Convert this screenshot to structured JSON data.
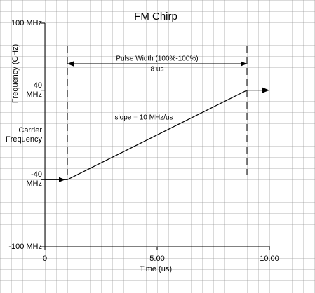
{
  "chart_data": {
    "type": "line",
    "title": "FM Chirp",
    "x_label": "Time (us)",
    "y_label": "Frequency (GHz)",
    "x": [
      0,
      1,
      9,
      10
    ],
    "series": [
      {
        "color": "#000000",
        "values": [
          -40,
          -40,
          40,
          40
        ]
      }
    ],
    "xlim": [
      0,
      10
    ],
    "xticks": [
      0,
      {
        "value": 5,
        "label": "5.00"
      },
      {
        "value": 10,
        "label": "10.00"
      }
    ],
    "ylim": [
      -100,
      100
    ],
    "yticks": [
      {
        "value": 100,
        "label": "100 MHz"
      },
      {
        "value": 40,
        "label": "40\nMHz"
      },
      {
        "value": 0,
        "label": "Carrier\nFrequency"
      },
      {
        "value": -40,
        "label": "-40\nMHz"
      },
      {
        "value": -100,
        "label": "-100 MHz"
      }
    ],
    "pulse_window": [
      1,
      9
    ],
    "annotations": [
      "Pulse Width (100%-100%)",
      "8 us",
      "slope = 10 MHz/us"
    ]
  }
}
